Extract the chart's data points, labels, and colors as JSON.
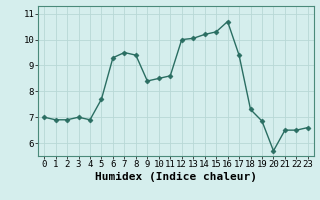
{
  "x": [
    0,
    1,
    2,
    3,
    4,
    5,
    6,
    7,
    8,
    9,
    10,
    11,
    12,
    13,
    14,
    15,
    16,
    17,
    18,
    19,
    20,
    21,
    22,
    23
  ],
  "y": [
    7.0,
    6.9,
    6.9,
    7.0,
    6.9,
    7.7,
    9.3,
    9.5,
    9.4,
    8.4,
    8.5,
    8.6,
    10.0,
    10.05,
    10.2,
    10.3,
    10.7,
    9.4,
    7.3,
    6.85,
    5.7,
    6.5,
    6.5,
    6.6
  ],
  "line_color": "#2a6e62",
  "marker": "D",
  "marker_size": 2.5,
  "bg_color": "#d5eeed",
  "grid_color": "#b8d8d6",
  "xlabel": "Humidex (Indice chaleur)",
  "xlabel_fontsize": 8,
  "yticks": [
    6,
    7,
    8,
    9,
    10,
    11
  ],
  "xticks": [
    0,
    1,
    2,
    3,
    4,
    5,
    6,
    7,
    8,
    9,
    10,
    11,
    12,
    13,
    14,
    15,
    16,
    17,
    18,
    19,
    20,
    21,
    22,
    23
  ],
  "xlim": [
    -0.5,
    23.5
  ],
  "ylim": [
    5.5,
    11.3
  ],
  "tick_fontsize": 6.5,
  "line_width": 1.0
}
